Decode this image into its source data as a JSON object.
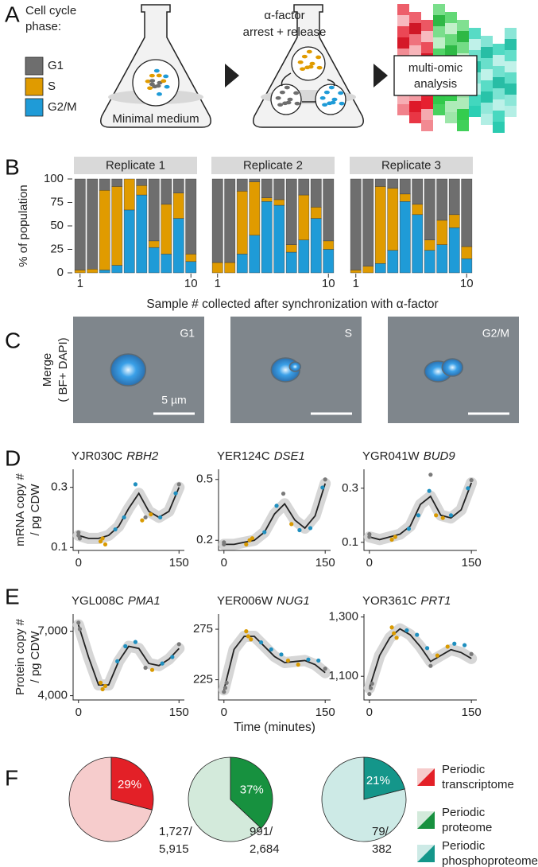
{
  "panel_labels": [
    "A",
    "B",
    "C",
    "D",
    "E",
    "F"
  ],
  "schematic": {
    "legend_title": [
      "Cell cycle",
      "phase:"
    ],
    "medium": "Minimal medium",
    "treatment": [
      "α-factor",
      "arrest + release"
    ],
    "analysis": [
      "multi-omic",
      "analysis"
    ]
  },
  "microscopy": {
    "y_label": [
      "Merge",
      "( BF+ DAPI)"
    ],
    "images": [
      "G1",
      "S",
      "G2/M"
    ],
    "scale_bar": "5 µm"
  },
  "chart_data": [
    {
      "type": "stacked_bar",
      "y_label": "% of population",
      "x_label": "Sample # collected after synchronization with α-factor",
      "facets": [
        "Replicate 1",
        "Replicate 2",
        "Replicate 3"
      ],
      "categories": [
        1,
        null,
        null,
        null,
        null,
        null,
        null,
        null,
        null,
        10
      ],
      "ylim": [
        0,
        100
      ],
      "yticks": [
        0,
        25,
        50,
        75,
        100
      ],
      "series": [
        {
          "name": "G1",
          "color": "#6e6e6e",
          "values": [
            [
              97,
              96,
              12,
              8,
              0,
              7,
              66,
              27,
              15,
              80
            ],
            [
              89,
              89,
              13,
              3,
              20,
              22,
              70,
              17,
              30,
              66
            ],
            [
              97,
              93,
              8,
              10,
              16,
              27,
              65,
              44,
              38,
              72
            ]
          ]
        },
        {
          "name": "S",
          "color": "#e09b00",
          "values": [
            [
              3,
              4,
              85,
              84,
              33,
              10,
              7,
              53,
              27,
              8
            ],
            [
              11,
              11,
              67,
              57,
              4,
              6,
              8,
              48,
              12,
              9
            ],
            [
              3,
              7,
              82,
              66,
              8,
              11,
              11,
              26,
              14,
              13
            ]
          ]
        },
        {
          "name": "G2/M",
          "color": "#1f9bd7",
          "values": [
            [
              0,
              0,
              3,
              8,
              67,
              83,
              27,
              20,
              58,
              12
            ],
            [
              0,
              0,
              20,
              40,
              76,
              72,
              22,
              35,
              58,
              25
            ],
            [
              0,
              0,
              10,
              24,
              76,
              62,
              24,
              30,
              48,
              15
            ]
          ]
        }
      ]
    },
    {
      "type": "line",
      "title": "YJR030C",
      "title_gene": "RBH2",
      "y_label": [
        "mRNA copy #",
        "/ pg CDW"
      ],
      "xlim": [
        -8,
        158
      ],
      "xticks": [
        0,
        150
      ],
      "ylim": [
        0.09,
        0.36
      ],
      "yticks": [
        0.1,
        0.3
      ],
      "series": [
        {
          "style": "fit",
          "color": "#222222",
          "x": [
            0,
            15,
            30,
            45,
            60,
            75,
            90,
            105,
            120,
            135,
            150
          ],
          "values": [
            0.14,
            0.13,
            0.13,
            0.14,
            0.17,
            0.23,
            0.28,
            0.22,
            0.2,
            0.22,
            0.3
          ]
        },
        {
          "style": "points",
          "color": "#7a7a7a",
          "x": [
            0,
            0,
            2,
            100,
            150
          ],
          "values": [
            0.15,
            0.14,
            0.13,
            0.2,
            0.31
          ]
        },
        {
          "style": "points",
          "color": "#d99a00",
          "x": [
            33,
            36,
            40,
            95,
            108
          ],
          "values": [
            0.12,
            0.13,
            0.11,
            0.19,
            0.21
          ]
        },
        {
          "style": "points",
          "color": "#1f8fbf",
          "x": [
            55,
            68,
            85,
            122,
            145
          ],
          "values": [
            0.16,
            0.2,
            0.31,
            0.2,
            0.28
          ]
        }
      ]
    },
    {
      "type": "line",
      "title": "YER124C",
      "title_gene": "DSE1",
      "xlim": [
        -8,
        158
      ],
      "xticks": [
        0,
        150
      ],
      "ylim": [
        0.15,
        0.55
      ],
      "yticks": [
        0.2,
        0.5
      ],
      "series": [
        {
          "style": "fit",
          "color": "#222222",
          "x": [
            0,
            15,
            30,
            45,
            60,
            75,
            90,
            105,
            120,
            135,
            150
          ],
          "values": [
            0.18,
            0.18,
            0.19,
            0.2,
            0.24,
            0.33,
            0.38,
            0.3,
            0.26,
            0.32,
            0.48
          ]
        },
        {
          "style": "points",
          "color": "#7a7a7a",
          "x": [
            0,
            0,
            88,
            150
          ],
          "values": [
            0.19,
            0.18,
            0.43,
            0.5
          ]
        },
        {
          "style": "points",
          "color": "#d99a00",
          "x": [
            33,
            38,
            42,
            100
          ],
          "values": [
            0.18,
            0.2,
            0.21,
            0.28
          ]
        },
        {
          "style": "points",
          "color": "#1f8fbf",
          "x": [
            60,
            78,
            112,
            128,
            146
          ],
          "values": [
            0.24,
            0.37,
            0.25,
            0.26,
            0.46
          ]
        }
      ]
    },
    {
      "type": "line",
      "title": "YGR041W",
      "title_gene": "BUD9",
      "xlim": [
        -8,
        158
      ],
      "xticks": [
        0,
        150
      ],
      "ylim": [
        0.07,
        0.37
      ],
      "yticks": [
        0.1,
        0.3
      ],
      "series": [
        {
          "style": "fit",
          "color": "#222222",
          "x": [
            0,
            15,
            30,
            45,
            60,
            75,
            90,
            105,
            120,
            135,
            150
          ],
          "values": [
            0.12,
            0.11,
            0.12,
            0.13,
            0.16,
            0.24,
            0.27,
            0.2,
            0.19,
            0.22,
            0.32
          ]
        },
        {
          "style": "points",
          "color": "#7a7a7a",
          "x": [
            0,
            0,
            90,
            150
          ],
          "values": [
            0.13,
            0.12,
            0.35,
            0.33
          ]
        },
        {
          "style": "points",
          "color": "#d99a00",
          "x": [
            33,
            38,
            98,
            108
          ],
          "values": [
            0.11,
            0.12,
            0.2,
            0.19
          ]
        },
        {
          "style": "points",
          "color": "#1f8fbf",
          "x": [
            58,
            72,
            88,
            120,
            145
          ],
          "values": [
            0.15,
            0.2,
            0.29,
            0.2,
            0.3
          ]
        }
      ]
    },
    {
      "type": "line",
      "title": "YGL008C",
      "title_gene": "PMA1",
      "y_label": [
        "Protein copy #",
        "/ pg CDW"
      ],
      "xlim": [
        -8,
        158
      ],
      "xticks": [
        0,
        150
      ],
      "ylim": [
        3800,
        7800
      ],
      "yticks": [
        {
          "value": 4000,
          "label": "4,000"
        },
        {
          "value": 7000,
          "label": "7,000"
        }
      ],
      "series": [
        {
          "style": "fit",
          "color": "#222222",
          "x": [
            0,
            15,
            30,
            45,
            60,
            75,
            90,
            105,
            120,
            135,
            150
          ],
          "values": [
            7300,
            5800,
            4500,
            4500,
            5600,
            6300,
            6200,
            5500,
            5400,
            5700,
            6200
          ]
        },
        {
          "style": "points",
          "color": "#7a7a7a",
          "x": [
            0,
            2,
            100,
            150
          ],
          "values": [
            7400,
            7100,
            5300,
            6400
          ]
        },
        {
          "style": "points",
          "color": "#d99a00",
          "x": [
            33,
            36,
            40,
            110
          ],
          "values": [
            4600,
            4300,
            4450,
            5200
          ]
        },
        {
          "style": "points",
          "color": "#1f8fbf",
          "x": [
            58,
            70,
            85,
            125,
            140
          ],
          "values": [
            5600,
            6300,
            6500,
            5500,
            5800
          ]
        }
      ]
    },
    {
      "type": "line",
      "title": "YER006W",
      "title_gene": "NUG1",
      "x_label": "Time (minutes)",
      "xlim": [
        -8,
        158
      ],
      "xticks": [
        0,
        150
      ],
      "ylim": [
        205,
        290
      ],
      "yticks": [
        225,
        275
      ],
      "series": [
        {
          "style": "fit",
          "color": "#222222",
          "x": [
            0,
            15,
            30,
            45,
            60,
            75,
            90,
            105,
            120,
            135,
            150
          ],
          "values": [
            215,
            255,
            268,
            268,
            258,
            248,
            242,
            243,
            244,
            240,
            232
          ]
        },
        {
          "style": "points",
          "color": "#7a7a7a",
          "x": [
            0,
            2,
            4,
            150
          ],
          "values": [
            213,
            217,
            222,
            236
          ]
        },
        {
          "style": "points",
          "color": "#d99a00",
          "x": [
            33,
            36,
            40,
            95,
            110
          ],
          "values": [
            273,
            268,
            265,
            244,
            240
          ]
        },
        {
          "style": "points",
          "color": "#1f8fbf",
          "x": [
            55,
            70,
            85,
            125,
            140
          ],
          "values": [
            262,
            255,
            250,
            245,
            244
          ]
        }
      ]
    },
    {
      "type": "line",
      "title": "YOR361C",
      "title_gene": "PRT1",
      "xlim": [
        -8,
        158
      ],
      "xticks": [
        0,
        150
      ],
      "ylim": [
        1020,
        1310
      ],
      "yticks": [
        {
          "value": 1100,
          "label": "1,100"
        },
        {
          "value": 1300,
          "label": "1,300"
        }
      ],
      "series": [
        {
          "style": "fit",
          "color": "#222222",
          "x": [
            0,
            15,
            30,
            45,
            60,
            75,
            90,
            105,
            120,
            135,
            150
          ],
          "values": [
            1060,
            1170,
            1230,
            1260,
            1240,
            1200,
            1150,
            1170,
            1190,
            1180,
            1160
          ]
        },
        {
          "style": "points",
          "color": "#7a7a7a",
          "x": [
            0,
            2,
            4,
            90,
            150
          ],
          "values": [
            1040,
            1060,
            1075,
            1135,
            1175
          ]
        },
        {
          "style": "points",
          "color": "#d99a00",
          "x": [
            33,
            36,
            40,
            100,
            115
          ],
          "values": [
            1265,
            1245,
            1230,
            1170,
            1200
          ]
        },
        {
          "style": "points",
          "color": "#1f8fbf",
          "x": [
            55,
            70,
            85,
            125,
            140
          ],
          "values": [
            1255,
            1240,
            1195,
            1210,
            1205
          ]
        }
      ]
    },
    {
      "type": "pie",
      "values": [
        29,
        71
      ],
      "value_labels": [
        "29%",
        null
      ],
      "colors": [
        "#e32027",
        "#f6cccc"
      ],
      "annotation": [
        "1,727/",
        "5,915"
      ],
      "legend_label": [
        "Periodic",
        "transcriptome"
      ]
    },
    {
      "type": "pie",
      "values": [
        37,
        63
      ],
      "value_labels": [
        "37%",
        null
      ],
      "colors": [
        "#17913f",
        "#d3eadb"
      ],
      "annotation": [
        "991/",
        "2,684"
      ],
      "legend_label": [
        "Periodic",
        "proteome"
      ]
    },
    {
      "type": "pie",
      "values": [
        21,
        79
      ],
      "value_labels": [
        "21%",
        null
      ],
      "colors": [
        "#14968a",
        "#cdeae6"
      ],
      "annotation": [
        "79/",
        "382"
      ],
      "legend_label": [
        "Periodic",
        "phosphoproteome"
      ]
    }
  ]
}
